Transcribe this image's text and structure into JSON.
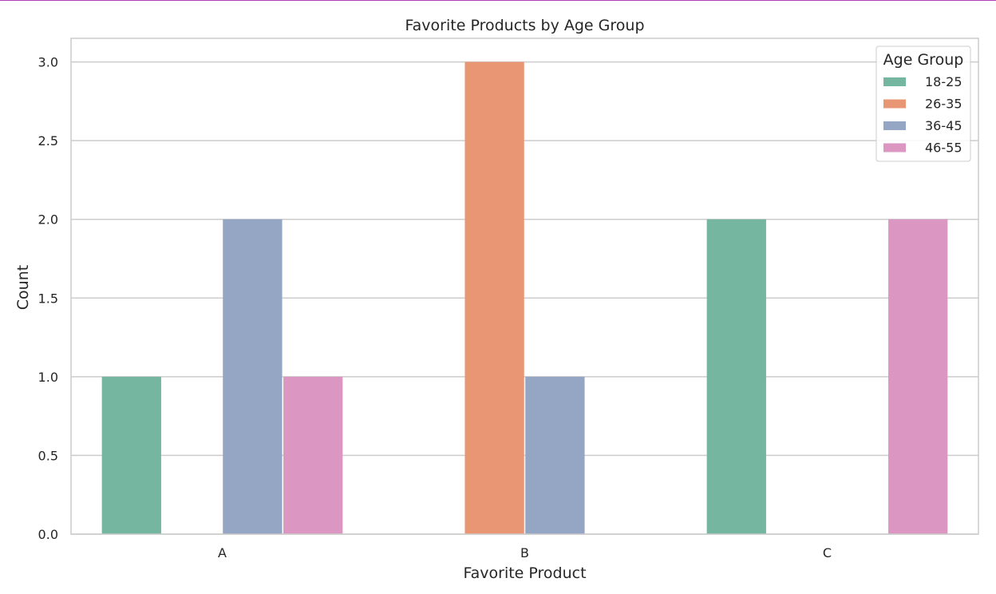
{
  "chart_data": {
    "type": "bar",
    "title": "Favorite Products by Age Group",
    "xlabel": "Favorite Product",
    "ylabel": "Count",
    "categories": [
      "A",
      "B",
      "C"
    ],
    "series": [
      {
        "name": "18-25",
        "color": "#75b6a1",
        "values": [
          1,
          0,
          2
        ]
      },
      {
        "name": "26-35",
        "color": "#e99675",
        "values": [
          0,
          3,
          0
        ]
      },
      {
        "name": "36-45",
        "color": "#95a5c4",
        "values": [
          2,
          1,
          0
        ]
      },
      {
        "name": "46-55",
        "color": "#dc96c2",
        "values": [
          1,
          0,
          2
        ]
      }
    ],
    "ylim": [
      0,
      3.15
    ],
    "yticks": [
      "0.0",
      "0.5",
      "1.0",
      "1.5",
      "2.0",
      "2.5",
      "3.0"
    ],
    "grid": true,
    "legend": {
      "title": "Age Group",
      "placement": "top-right"
    }
  },
  "colors": {
    "grid": "#cccccc",
    "frame": "#cccccc",
    "text": "#262626",
    "top_accent": "#b13fb5"
  }
}
